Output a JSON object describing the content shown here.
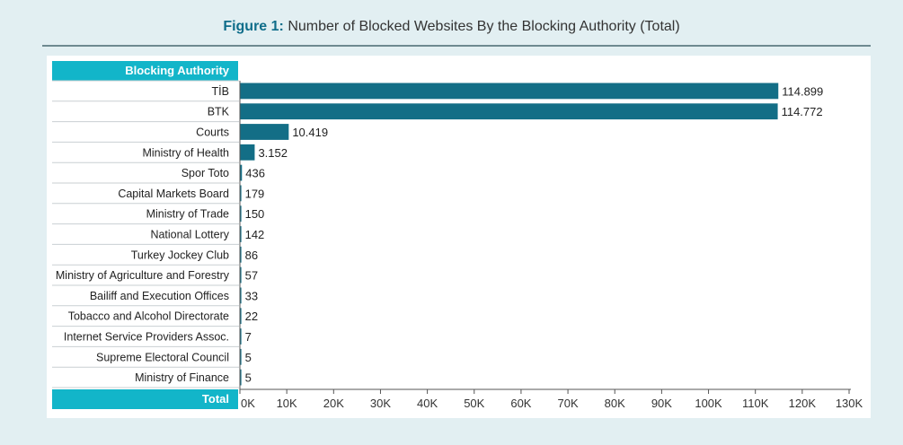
{
  "figure": {
    "prefix": "Figure 1:",
    "title": "Number of Blocked Websites By the Blocking Authority (Total)"
  },
  "colors": {
    "bar": "#136e86",
    "header": "#12b5c9",
    "background": "#e2eff2"
  },
  "chart_data": {
    "type": "bar",
    "orientation": "horizontal",
    "category_header": "Blocking Authority",
    "axis_header": "Total",
    "categories": [
      "TİB",
      "BTK",
      "Courts",
      "Ministry of Health",
      "Spor Toto",
      "Capital Markets Board",
      "Ministry of Trade",
      "National Lottery",
      "Turkey Jockey Club",
      "Ministry of Agriculture and Forestry",
      "Bailiff and Execution Offices",
      "Tobacco and Alcohol Directorate",
      "Internet Service Providers Assoc.",
      "Supreme Electoral Council",
      "Ministry of Finance"
    ],
    "values": [
      114899,
      114772,
      10419,
      3152,
      436,
      179,
      150,
      142,
      86,
      57,
      33,
      22,
      7,
      5,
      5
    ],
    "value_labels": [
      "114.899",
      "114.772",
      "10.419",
      "3.152",
      "436",
      "179",
      "150",
      "142",
      "86",
      "57",
      "33",
      "22",
      "7",
      "5",
      "5"
    ],
    "xlim": [
      0,
      130000
    ],
    "ticks": [
      0,
      10000,
      20000,
      30000,
      40000,
      50000,
      60000,
      70000,
      80000,
      90000,
      100000,
      110000,
      120000,
      130000
    ],
    "tick_labels": [
      "0K",
      "10K",
      "20K",
      "30K",
      "40K",
      "50K",
      "60K",
      "70K",
      "80K",
      "90K",
      "100K",
      "110K",
      "120K",
      "130K"
    ],
    "grid": false,
    "legend": "none"
  }
}
